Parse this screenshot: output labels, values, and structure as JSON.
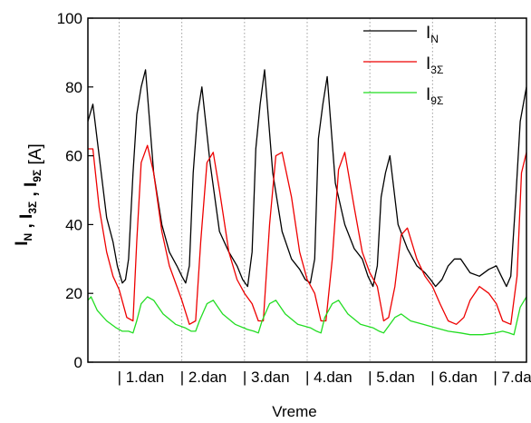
{
  "chart_data": {
    "type": "line",
    "xlabel": "Vreme",
    "ylabel": {
      "parts": [
        {
          "base": "I",
          "sub": "N"
        },
        {
          "sep": " , "
        },
        {
          "base": "I",
          "sub": "3Σ"
        },
        {
          "sep": " , "
        },
        {
          "base": "I",
          "sub": "9Σ"
        }
      ],
      "unit": "[A]"
    },
    "ylim": [
      0,
      100
    ],
    "yticks": [
      "0",
      "20",
      "40",
      "60",
      "80",
      "100"
    ],
    "xlim": [
      0,
      7
    ],
    "day_labels": [
      "1.dan",
      "2.dan",
      "3.dan",
      "4.dan",
      "5.dan",
      "6.dan",
      "7.dan"
    ],
    "day_label_prefix": "|",
    "day_boundaries": [
      0.5,
      1.5,
      2.5,
      3.5,
      4.5,
      5.5,
      6.5
    ],
    "legend_placement": "top-right",
    "grid": "vertical dotted lines at day boundaries",
    "series": [
      {
        "name": {
          "base": "I",
          "sub": "N"
        },
        "color": "#000000",
        "x": [
          0,
          0.08,
          0.18,
          0.3,
          0.4,
          0.47,
          0.55,
          0.6,
          0.65,
          0.72,
          0.78,
          0.85,
          0.92,
          1.05,
          1.18,
          1.3,
          1.42,
          1.5,
          1.56,
          1.62,
          1.68,
          1.75,
          1.82,
          1.95,
          2.1,
          2.25,
          2.38,
          2.47,
          2.55,
          2.62,
          2.68,
          2.75,
          2.82,
          2.95,
          3.1,
          3.25,
          3.38,
          3.47,
          3.55,
          3.62,
          3.68,
          3.75,
          3.82,
          3.95,
          4.1,
          4.25,
          4.38,
          4.47,
          4.55,
          4.62,
          4.68,
          4.75,
          4.82,
          4.95,
          5.1,
          5.25,
          5.38,
          5.47,
          5.55,
          5.65,
          5.75,
          5.85,
          5.95,
          6.1,
          6.25,
          6.4,
          6.52,
          6.6,
          6.68,
          6.75,
          6.82,
          6.9,
          7.0
        ],
        "values": [
          70,
          75,
          60,
          42,
          35,
          28,
          23,
          24,
          30,
          55,
          72,
          80,
          85,
          55,
          40,
          32,
          28,
          25,
          23,
          28,
          55,
          72,
          80,
          58,
          38,
          32,
          28,
          24,
          22,
          32,
          62,
          75,
          85,
          55,
          38,
          30,
          27,
          24,
          23,
          30,
          65,
          75,
          83,
          52,
          40,
          33,
          30,
          25,
          22,
          28,
          48,
          55,
          60,
          40,
          33,
          28,
          26,
          24,
          22,
          24,
          28,
          30,
          30,
          26,
          25,
          27,
          28,
          25,
          22,
          25,
          45,
          70,
          80
        ]
      },
      {
        "name": {
          "base": "I",
          "sub": "3Σ"
        },
        "color": "#ee0000",
        "x": [
          0,
          0.08,
          0.18,
          0.3,
          0.4,
          0.5,
          0.62,
          0.72,
          0.78,
          0.85,
          0.95,
          1.05,
          1.18,
          1.3,
          1.42,
          1.5,
          1.62,
          1.72,
          1.8,
          1.9,
          2.0,
          2.1,
          2.25,
          2.38,
          2.5,
          2.62,
          2.72,
          2.8,
          2.9,
          3.0,
          3.1,
          3.25,
          3.38,
          3.5,
          3.62,
          3.72,
          3.8,
          3.9,
          4.0,
          4.1,
          4.25,
          4.38,
          4.5,
          4.62,
          4.72,
          4.8,
          4.9,
          5.0,
          5.1,
          5.25,
          5.38,
          5.5,
          5.62,
          5.75,
          5.88,
          6.0,
          6.1,
          6.25,
          6.4,
          6.52,
          6.62,
          6.75,
          6.85,
          6.92,
          7.0
        ],
        "values": [
          62,
          62,
          45,
          32,
          25,
          21,
          13,
          12,
          35,
          58,
          63,
          55,
          38,
          28,
          22,
          18,
          11,
          12,
          35,
          58,
          61,
          50,
          32,
          24,
          20,
          17,
          12,
          12,
          40,
          60,
          61,
          48,
          32,
          24,
          20,
          12,
          12,
          30,
          56,
          61,
          45,
          32,
          26,
          22,
          12,
          13,
          22,
          37,
          39,
          30,
          25,
          22,
          17,
          12,
          11,
          13,
          18,
          22,
          20,
          17,
          12,
          11,
          25,
          55,
          61
        ]
      },
      {
        "name": {
          "base": "I",
          "sub": "9Σ"
        },
        "color": "#22dd22",
        "x": [
          0,
          0.05,
          0.15,
          0.3,
          0.45,
          0.55,
          0.65,
          0.72,
          0.78,
          0.85,
          0.95,
          1.05,
          1.2,
          1.4,
          1.55,
          1.65,
          1.72,
          1.78,
          1.9,
          2.0,
          2.15,
          2.35,
          2.55,
          2.65,
          2.72,
          2.78,
          2.9,
          3.0,
          3.15,
          3.35,
          3.55,
          3.65,
          3.72,
          3.78,
          3.9,
          4.0,
          4.15,
          4.35,
          4.55,
          4.65,
          4.72,
          4.78,
          4.9,
          5.0,
          5.15,
          5.35,
          5.55,
          5.75,
          5.95,
          6.1,
          6.3,
          6.5,
          6.62,
          6.72,
          6.8,
          6.9,
          7.0
        ],
        "values": [
          18,
          19,
          15,
          12,
          10,
          9,
          9,
          8.5,
          12,
          17,
          19,
          18,
          14,
          11,
          10,
          9,
          9,
          12,
          17,
          18,
          14,
          11,
          9.5,
          9,
          8.5,
          12,
          17,
          18,
          14,
          11,
          10,
          9,
          8.5,
          13,
          17,
          18,
          14,
          11,
          10,
          9,
          8.5,
          10,
          13,
          14,
          12,
          11,
          10,
          9,
          8.5,
          8,
          8,
          8.5,
          9,
          8.5,
          8,
          16,
          19
        ]
      }
    ]
  }
}
